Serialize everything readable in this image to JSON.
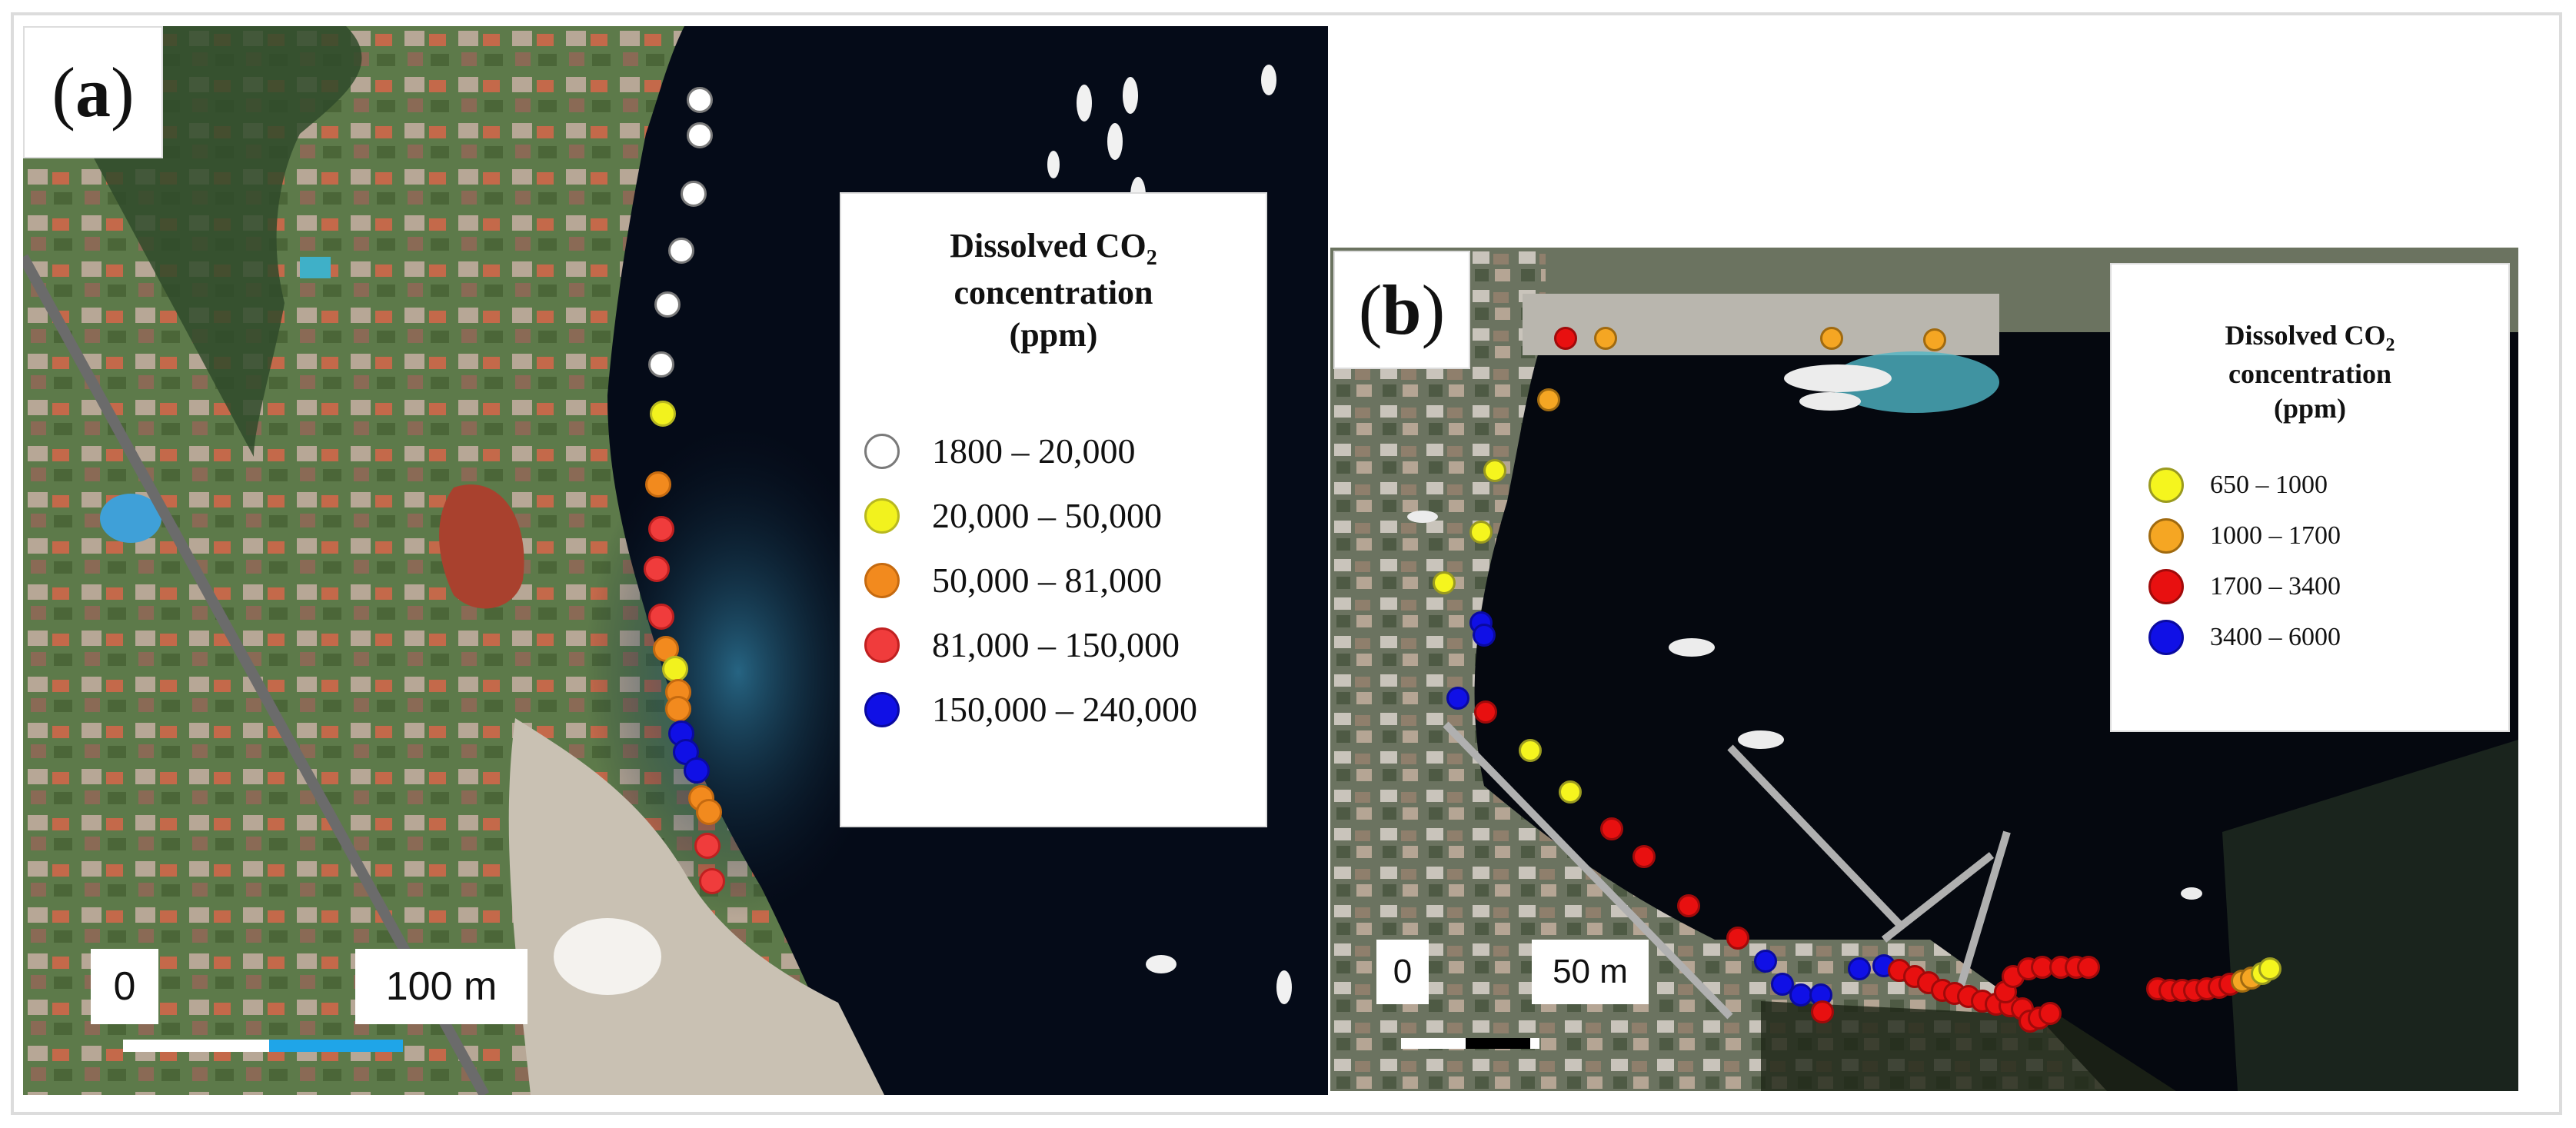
{
  "panel_a": {
    "label_letter": "a",
    "legend": {
      "title_line1": "Dissolved CO",
      "title_sub": "2",
      "title_line2": "concentration",
      "title_line3": "(ppm)",
      "items": [
        {
          "label": "1800 – 20,000",
          "color": "#ffffff",
          "stroke": "#7a7a7a"
        },
        {
          "label": "20,000 – 50,000",
          "color": "#f2f21e",
          "stroke": "#b8b820"
        },
        {
          "label": "50,000 – 81,000",
          "color": "#f28a1e",
          "stroke": "#c56a10"
        },
        {
          "label": "81,000 – 150,000",
          "color": "#f03c3c",
          "stroke": "#c02020"
        },
        {
          "label": "150,000 – 240,000",
          "color": "#1010e6",
          "stroke": "#0a0aa0"
        }
      ]
    },
    "scale": {
      "zero": "0",
      "distance": "100 m"
    }
  },
  "panel_b": {
    "label_letter": "b",
    "legend": {
      "title_line1": "Dissolved CO",
      "title_sub": "2",
      "title_line2": "concentration",
      "title_line3": "(ppm)",
      "items": [
        {
          "label": "650 – 1000",
          "color": "#f5f51e",
          "stroke": "#9a9a20"
        },
        {
          "label": "1000 – 1700",
          "color": "#f5a623",
          "stroke": "#a06a10"
        },
        {
          "label": "1700 – 3400",
          "color": "#e81010",
          "stroke": "#a00a0a"
        },
        {
          "label": "3400 – 6000",
          "color": "#1010e6",
          "stroke": "#0a0aa0"
        }
      ]
    },
    "scale": {
      "zero": "0",
      "distance": "50 m"
    }
  }
}
